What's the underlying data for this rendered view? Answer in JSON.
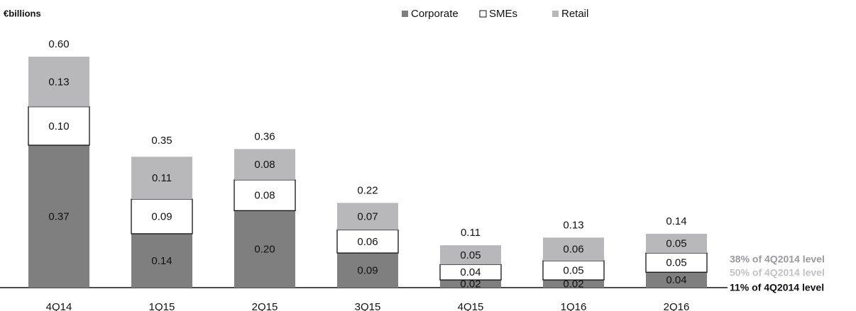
{
  "chart_data": {
    "type": "stacked-bar",
    "title": "€billions",
    "categories": [
      "4Q14",
      "1Q15",
      "2Q15",
      "3Q15",
      "4Q15",
      "1Q16",
      "2Q16"
    ],
    "series": [
      {
        "name": "Corporate",
        "color": "#7f7f80",
        "values": [
          0.37,
          0.14,
          0.2,
          0.09,
          0.02,
          0.02,
          0.04
        ],
        "value_labels": [
          "0.37",
          "0.14",
          "0.20",
          "0.09",
          "0.02",
          "0.02",
          "0.04"
        ]
      },
      {
        "name": "SMEs",
        "color": "#ffffff",
        "values": [
          0.1,
          0.09,
          0.08,
          0.06,
          0.04,
          0.05,
          0.05
        ],
        "value_labels": [
          "0.10",
          "0.09",
          "0.08",
          "0.06",
          "0.04",
          "0.05",
          "0.05"
        ]
      },
      {
        "name": "Retail",
        "color": "#b8b8bb",
        "values": [
          0.13,
          0.11,
          0.08,
          0.07,
          0.05,
          0.06,
          0.05
        ],
        "value_labels": [
          "0.13",
          "0.11",
          "0.08",
          "0.07",
          "0.05",
          "0.06",
          "0.05"
        ]
      }
    ],
    "totals": [
      0.6,
      0.35,
      0.36,
      0.22,
      0.11,
      0.13,
      0.14
    ],
    "total_labels": [
      "0.60",
      "0.35",
      "0.36",
      "0.22",
      "0.11",
      "0.13",
      "0.14"
    ],
    "annotations": [
      {
        "text": "38% of 4Q2014 level",
        "color": "#9a9a9c"
      },
      {
        "text": "50% of 4Q2014 level",
        "color": "#c2c2c4"
      },
      {
        "text": "11% of 4Q2014 level",
        "color": "#111111"
      }
    ]
  }
}
